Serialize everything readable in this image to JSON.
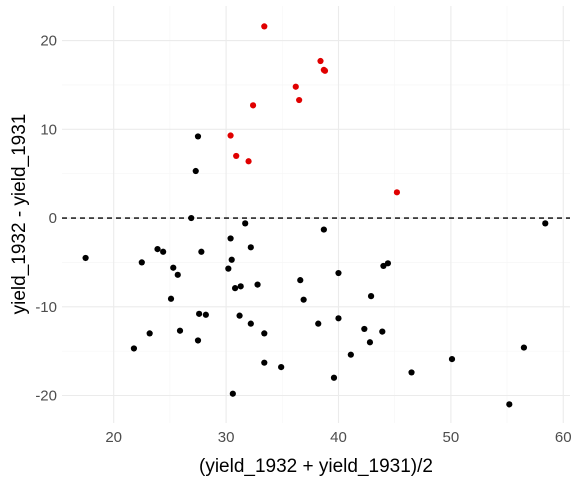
{
  "chart_data": {
    "type": "scatter",
    "title": "",
    "xlabel": "(yield_1932 + yield_1931)/2",
    "ylabel": "yield_1932 - yield_1931",
    "xlim": [
      15.4,
      60.6
    ],
    "ylim": [
      -23.1,
      23.9
    ],
    "x_ticks": [
      20,
      30,
      40,
      50,
      60
    ],
    "y_ticks": [
      -20,
      -10,
      0,
      10,
      20
    ],
    "grid": true,
    "reference_line": {
      "y": 0,
      "style": "dashed",
      "color": "#000000"
    },
    "colors": {
      "positive": "#e00000",
      "negative": "#000000"
    },
    "series": [
      {
        "color": "#e00000",
        "points": [
          [
            33.4,
            21.6
          ],
          [
            38.4,
            17.7
          ],
          [
            38.7,
            16.7
          ],
          [
            38.8,
            16.6
          ],
          [
            36.2,
            14.8
          ],
          [
            36.5,
            13.3
          ],
          [
            32.4,
            12.7
          ],
          [
            30.4,
            9.3
          ],
          [
            30.9,
            7.0
          ],
          [
            32.0,
            6.4
          ],
          [
            45.2,
            2.9
          ]
        ]
      },
      {
        "color": "#000000",
        "points": [
          [
            27.5,
            9.2
          ],
          [
            27.3,
            5.3
          ],
          [
            26.9,
            0.0
          ],
          [
            17.5,
            -4.5
          ],
          [
            21.8,
            -14.7
          ],
          [
            22.5,
            -5.0
          ],
          [
            23.2,
            -13.0
          ],
          [
            23.9,
            -3.5
          ],
          [
            24.4,
            -3.8
          ],
          [
            25.1,
            -9.1
          ],
          [
            25.3,
            -5.6
          ],
          [
            25.7,
            -6.4
          ],
          [
            25.9,
            -12.7
          ],
          [
            27.5,
            -13.8
          ],
          [
            27.6,
            -10.8
          ],
          [
            27.8,
            -3.8
          ],
          [
            28.2,
            -10.9
          ],
          [
            30.2,
            -5.7
          ],
          [
            30.4,
            -2.3
          ],
          [
            30.5,
            -4.7
          ],
          [
            30.6,
            -19.8
          ],
          [
            30.8,
            -7.9
          ],
          [
            31.2,
            -11.0
          ],
          [
            31.3,
            -7.7
          ],
          [
            31.7,
            -0.6
          ],
          [
            32.2,
            -3.3
          ],
          [
            32.2,
            -11.9
          ],
          [
            32.8,
            -7.5
          ],
          [
            33.4,
            -13.0
          ],
          [
            33.4,
            -16.3
          ],
          [
            34.9,
            -16.8
          ],
          [
            36.6,
            -7.0
          ],
          [
            36.9,
            -9.2
          ],
          [
            38.2,
            -11.9
          ],
          [
            38.7,
            -1.3
          ],
          [
            39.6,
            -18.0
          ],
          [
            40.0,
            -6.2
          ],
          [
            40.0,
            -11.3
          ],
          [
            41.1,
            -15.4
          ],
          [
            42.3,
            -12.5
          ],
          [
            42.8,
            -14.0
          ],
          [
            42.9,
            -8.8
          ],
          [
            43.9,
            -12.8
          ],
          [
            44.0,
            -5.4
          ],
          [
            44.4,
            -5.1
          ],
          [
            46.5,
            -17.4
          ],
          [
            50.1,
            -15.9
          ],
          [
            55.2,
            -21.0
          ],
          [
            56.5,
            -14.6
          ],
          [
            58.4,
            -0.6
          ]
        ]
      }
    ]
  }
}
